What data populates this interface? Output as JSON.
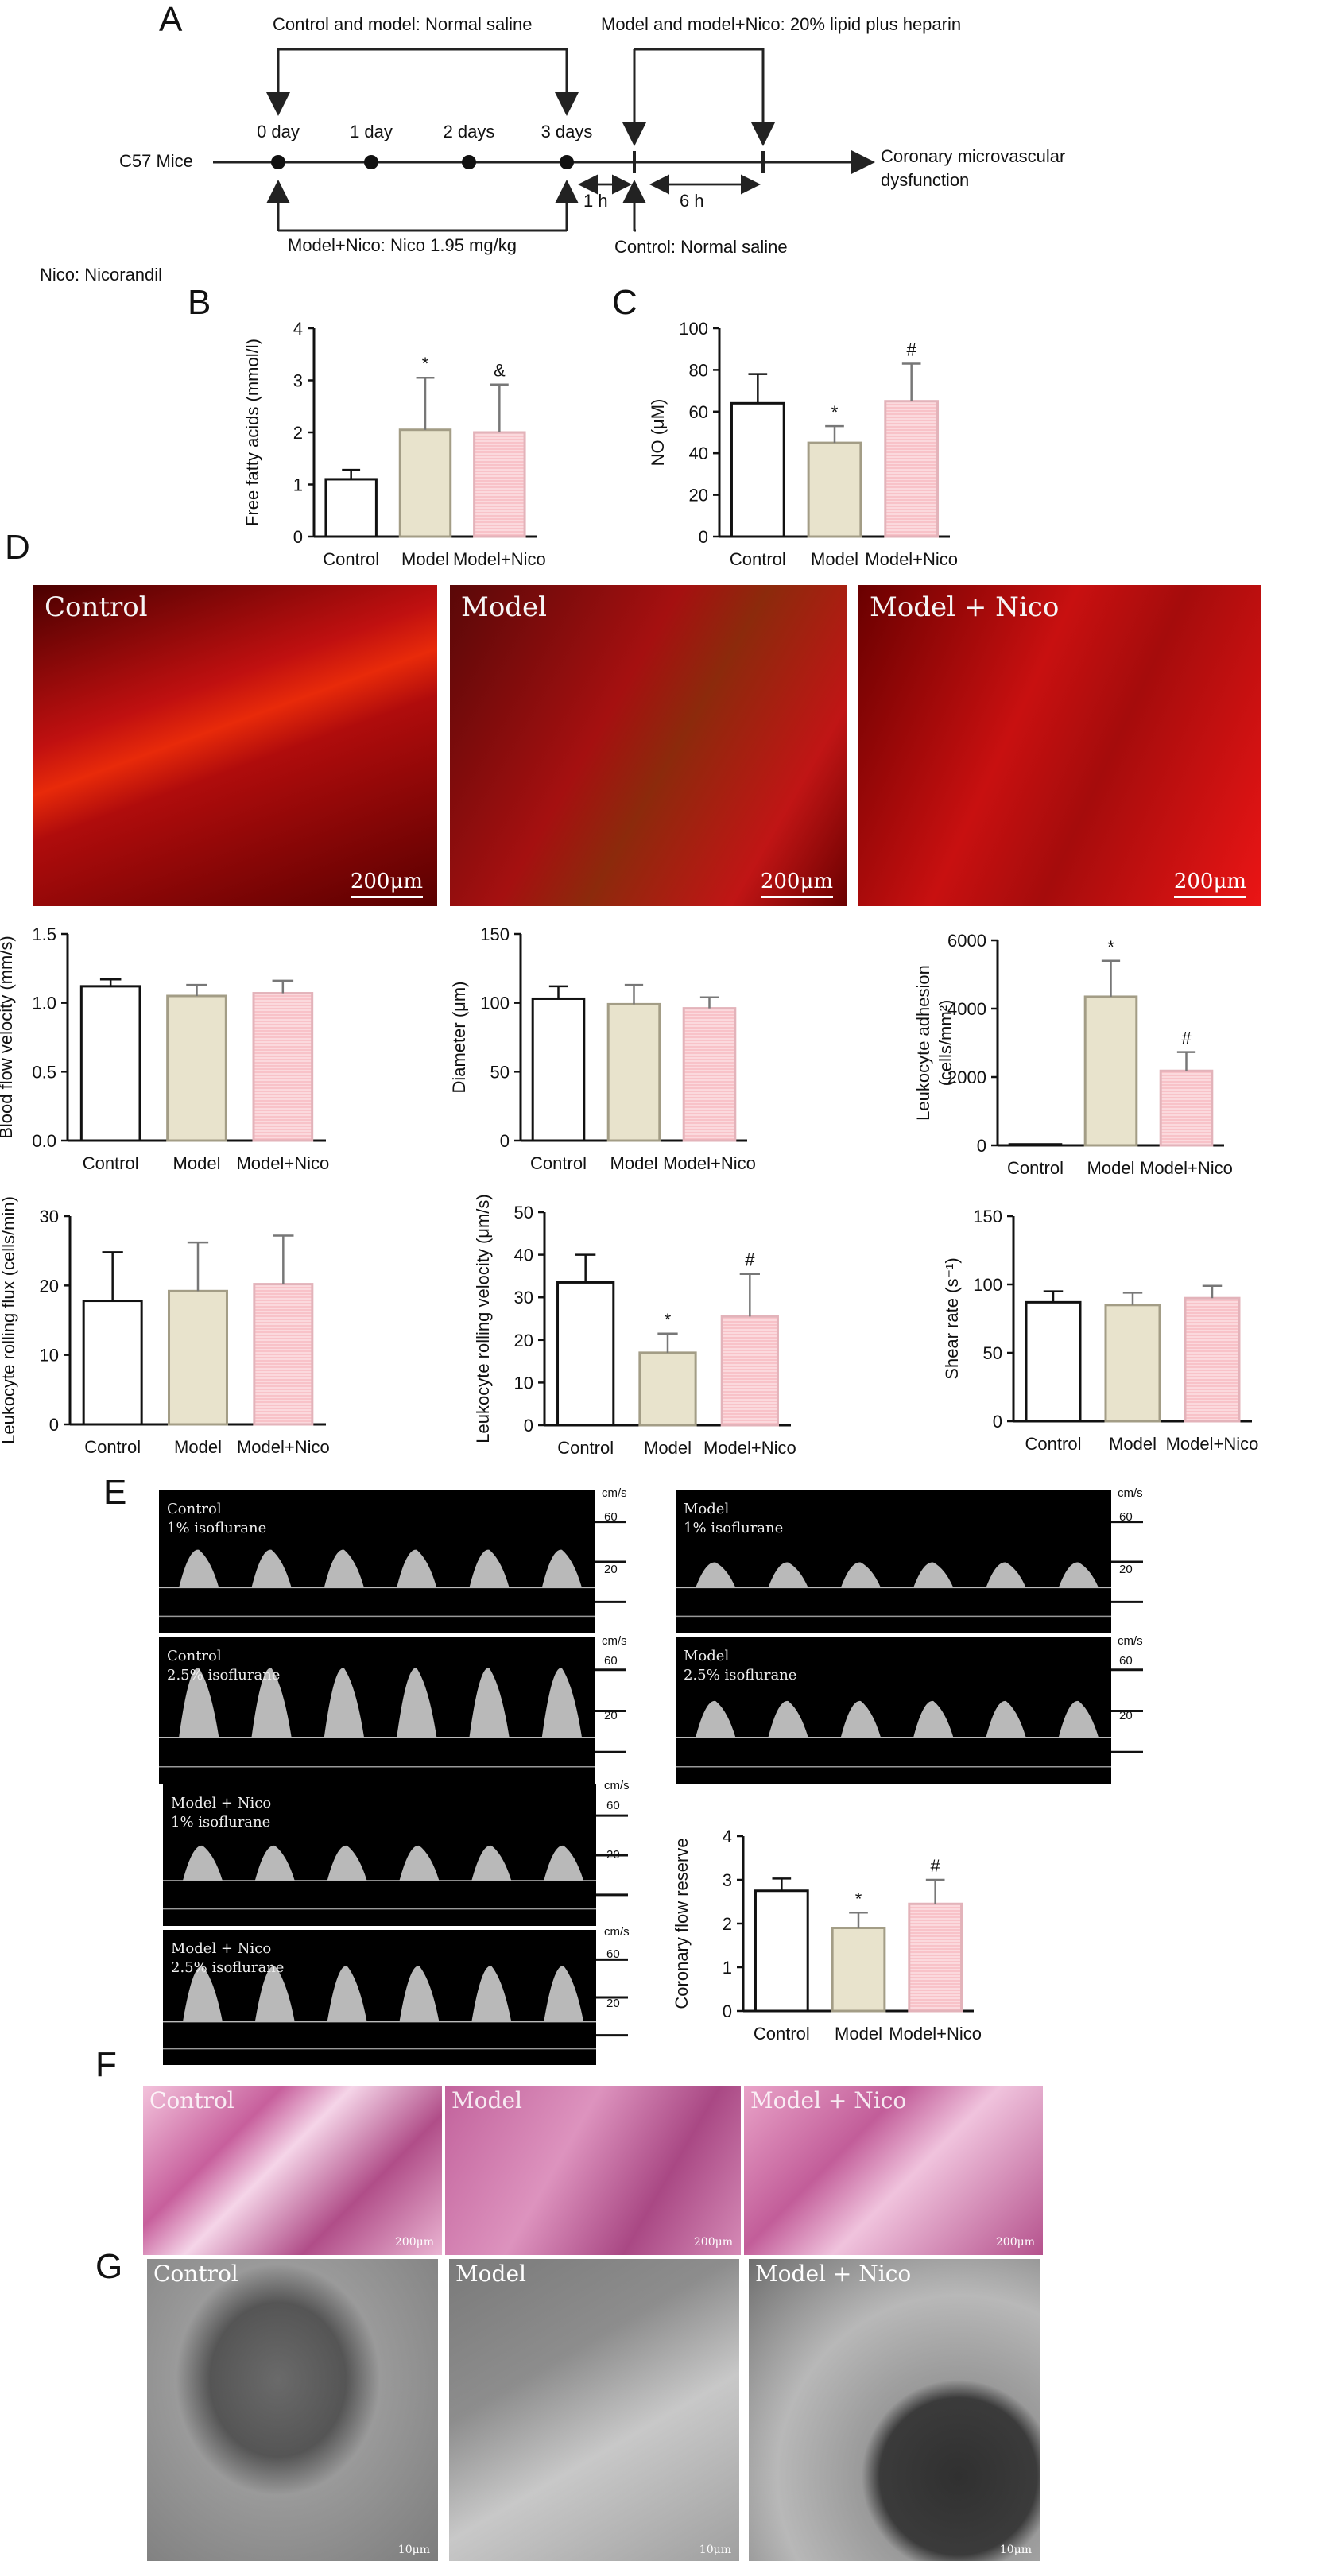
{
  "panels": {
    "A": "A",
    "B": "B",
    "C": "C",
    "D": "D",
    "E": "E",
    "F": "F",
    "G": "G"
  },
  "timeline": {
    "top_left_label": "Control and model: Normal saline",
    "top_right_label": "Model and model+Nico: 20% lipid plus heparin",
    "days": [
      "0 day",
      "1 day",
      "2 days",
      "3 days"
    ],
    "mice": "C57 Mice",
    "interval_1": "1 h",
    "interval_2": "6 h",
    "outcome_line1": "Coronary microvascular",
    "outcome_line2": "dysfunction",
    "bottom_left_label": "Model+Nico: Nico 1.95 mg/kg",
    "bottom_right_label": "Control: Normal saline",
    "abbrev": "Nico: Nicorandil"
  },
  "colors": {
    "control": "#ffffff",
    "model": "#e8e3cc",
    "model_nico": "#fbd9dd",
    "stripe": "#f7b8c0"
  },
  "chart_data": [
    {
      "id": "B",
      "type": "bar",
      "categories": [
        "Control",
        "Model",
        "Model+Nico"
      ],
      "values": [
        1.1,
        2.05,
        2.0
      ],
      "errors": [
        0.18,
        1.0,
        0.92
      ],
      "marks": [
        "",
        "*",
        "&"
      ],
      "ylabel": "Free fatty acids (mmol/l)",
      "ylim": [
        0,
        4
      ],
      "ticks": [
        "0",
        "1",
        "2",
        "3",
        "4"
      ]
    },
    {
      "id": "C",
      "type": "bar",
      "categories": [
        "Control",
        "Model",
        "Model+Nico"
      ],
      "values": [
        64,
        45,
        65
      ],
      "errors": [
        14,
        8,
        18
      ],
      "marks": [
        "",
        "*",
        "#"
      ],
      "ylabel": "NO (μM)",
      "ylim": [
        0,
        100
      ],
      "ticks": [
        "0",
        "20",
        "40",
        "60",
        "80",
        "100"
      ]
    },
    {
      "id": "D1",
      "type": "bar",
      "categories": [
        "Control",
        "Model",
        "Model+Nico"
      ],
      "values": [
        1.12,
        1.05,
        1.07
      ],
      "errors": [
        0.05,
        0.08,
        0.09
      ],
      "marks": [
        "",
        "",
        ""
      ],
      "ylabel": "Blood flow velocity (mm/s)",
      "ylim": [
        0,
        1.5
      ],
      "ticks": [
        "0.0",
        "0.5",
        "1.0",
        "1.5"
      ]
    },
    {
      "id": "D2",
      "type": "bar",
      "categories": [
        "Control",
        "Model",
        "Model+Nico"
      ],
      "values": [
        103,
        99,
        96
      ],
      "errors": [
        9,
        14,
        8
      ],
      "marks": [
        "",
        "",
        ""
      ],
      "ylabel": "Diameter (μm)",
      "ylim": [
        0,
        150
      ],
      "ticks": [
        "0",
        "50",
        "100",
        "150"
      ]
    },
    {
      "id": "D3",
      "type": "bar",
      "categories": [
        "Control",
        "Model",
        "Model+Nico"
      ],
      "values": [
        30,
        4350,
        2180
      ],
      "errors": [
        0,
        1050,
        550
      ],
      "marks": [
        "",
        "*",
        "#"
      ],
      "ylabel": "Leukocyte adhesion",
      "ylabel2": "(cells/mm²)",
      "ylim": [
        0,
        6000
      ],
      "ticks": [
        "0",
        "2000",
        "4000",
        "6000"
      ]
    },
    {
      "id": "D4",
      "type": "bar",
      "categories": [
        "Control",
        "Model",
        "Model+Nico"
      ],
      "values": [
        17.8,
        19.2,
        20.2
      ],
      "errors": [
        7,
        7,
        7
      ],
      "marks": [
        "",
        "",
        ""
      ],
      "ylabel": "Leukocyte rolling flux (cells/min)",
      "ylim": [
        0,
        30
      ],
      "ticks": [
        "0",
        "10",
        "20",
        "30"
      ]
    },
    {
      "id": "D5",
      "type": "bar",
      "categories": [
        "Control",
        "Model",
        "Model+Nico"
      ],
      "values": [
        33.5,
        17,
        25.5
      ],
      "errors": [
        6.5,
        4.5,
        10
      ],
      "marks": [
        "",
        "*",
        "#"
      ],
      "ylabel": "Leukocyte rolling velocity (μm/s)",
      "ylim": [
        0,
        50
      ],
      "ticks": [
        "0",
        "10",
        "20",
        "30",
        "40",
        "50"
      ]
    },
    {
      "id": "D6",
      "type": "bar",
      "categories": [
        "Control",
        "Model",
        "Model+Nico"
      ],
      "values": [
        87,
        85,
        90
      ],
      "errors": [
        8,
        9,
        9
      ],
      "marks": [
        "",
        "",
        ""
      ],
      "ylabel": "Shear rate (s⁻¹)",
      "ylim": [
        0,
        150
      ],
      "ticks": [
        "0",
        "50",
        "100",
        "150"
      ]
    },
    {
      "id": "E7",
      "type": "bar",
      "categories": [
        "Control",
        "Model",
        "Model+Nico"
      ],
      "values": [
        2.75,
        1.9,
        2.45
      ],
      "errors": [
        0.28,
        0.35,
        0.55
      ],
      "marks": [
        "",
        "*",
        "#"
      ],
      "ylabel": "Coronary flow reserve",
      "ylim": [
        0,
        4
      ],
      "ticks": [
        "0",
        "1",
        "2",
        "3",
        "4"
      ]
    }
  ],
  "micro": {
    "labels": [
      "Control",
      "Model",
      "Model + Nico"
    ],
    "scalebar": "200μm"
  },
  "doppler": {
    "unit": "cm/s",
    "ticks": [
      "60",
      "20"
    ],
    "panels": [
      {
        "label": "Control\n1% isoflurane"
      },
      {
        "label": "Control\n2.5% isoflurane"
      },
      {
        "label": "Model\n1% isoflurane"
      },
      {
        "label": "Model\n2.5% isoflurane"
      },
      {
        "label": "Model + Nico\n1% isoflurane"
      },
      {
        "label": "Model + Nico\n2.5% isoflurane"
      }
    ]
  },
  "histo": {
    "labels": [
      "Control",
      "Model",
      "Model + Nico"
    ],
    "scalebar": "200μm"
  },
  "tem": {
    "labels": [
      "Control",
      "Model",
      "Model + Nico"
    ],
    "scalebar": "10μm"
  }
}
